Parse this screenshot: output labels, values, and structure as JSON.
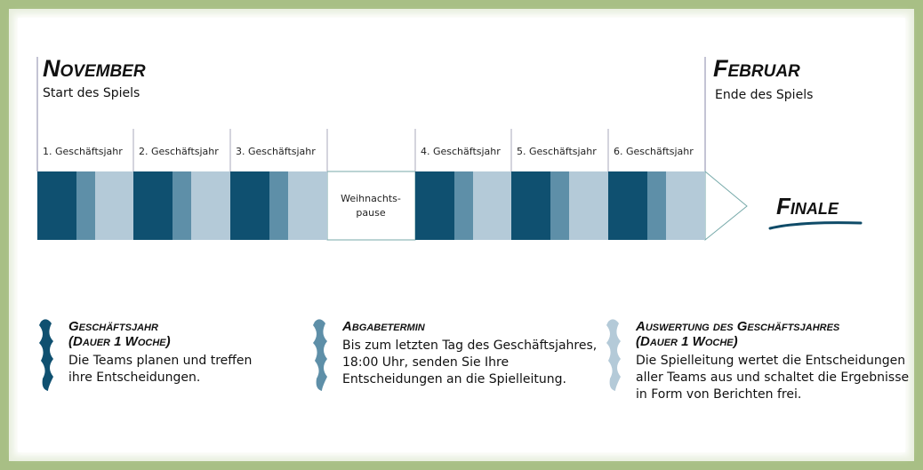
{
  "start": {
    "title": "November",
    "subtitle": "Start des Spiels"
  },
  "end": {
    "title": "Februar",
    "subtitle": "Ende des Spiels"
  },
  "periods": [
    "1. Geschäftsjahr",
    "2. Geschäftsjahr",
    "3. Geschäftsjahr",
    "4. Geschäftsjahr",
    "5. Geschäftsjahr",
    "6. Geschäftsjahr"
  ],
  "break": [
    "Weihnachts-",
    "pause"
  ],
  "finale": "Finale",
  "legend": [
    {
      "title": [
        "Geschäftsjahr",
        "(Dauer 1 Woche)"
      ],
      "text": [
        "Die Teams planen und treffen",
        "ihre Entscheidungen."
      ]
    },
    {
      "title": [
        "Abgabetermin"
      ],
      "text": [
        "Bis zum letzten Tag des Geschäftsjahres,",
        "18:00 Uhr, senden Sie Ihre",
        "Entscheidungen an die Spielleitung."
      ]
    },
    {
      "title": [
        "Auswertung des Geschäftsjahres",
        "(Dauer 1 Woche)"
      ],
      "text": [
        "Die Spielleitung wertet die Entscheidungen",
        "aller Teams aus und schaltet die Ergebnisse",
        "in Form von Berichten frei."
      ]
    }
  ]
}
